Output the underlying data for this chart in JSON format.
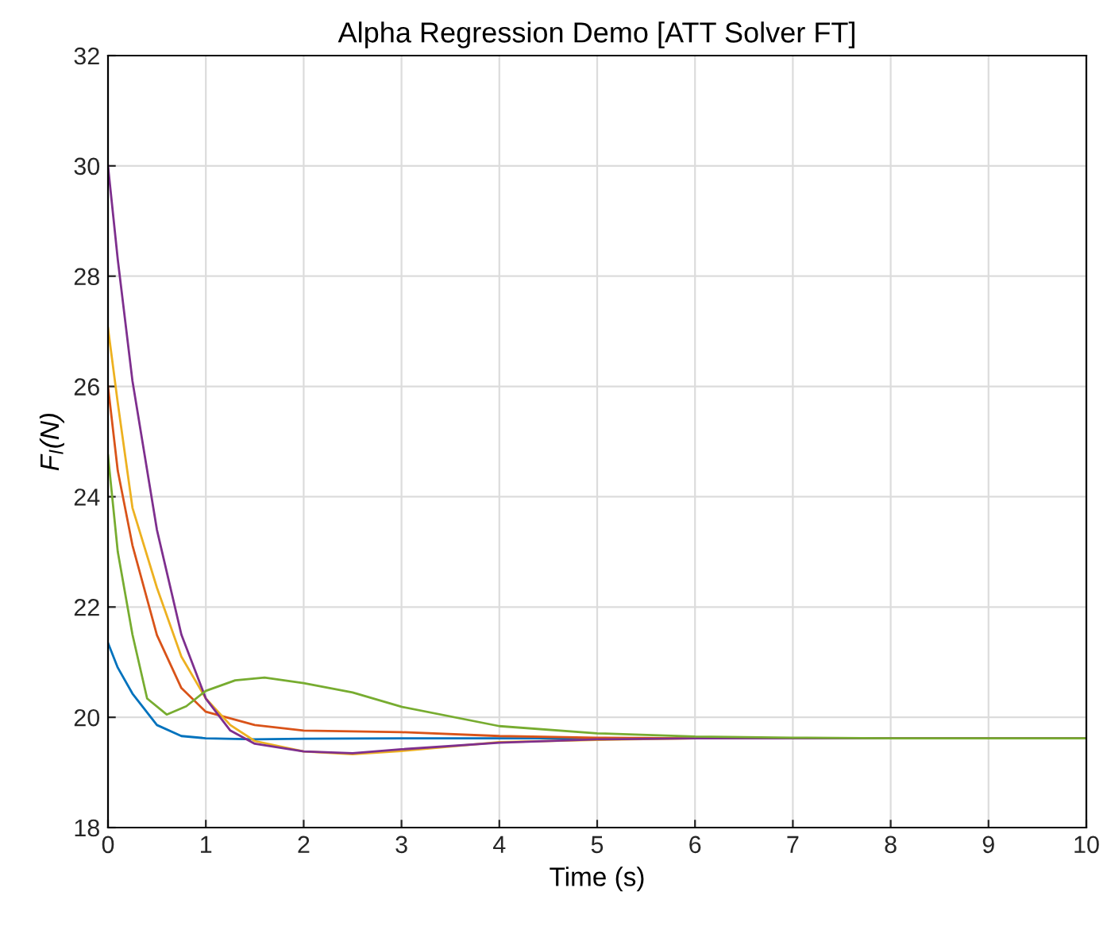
{
  "chart_data": {
    "type": "line",
    "title": "Alpha Regression Demo [ATT Solver FT]",
    "xlabel": "Time (s)",
    "ylabel": "F$_{l}$(N)",
    "xlim": [
      0,
      10
    ],
    "ylim": [
      18,
      32
    ],
    "xticks": [
      0,
      1,
      2,
      3,
      4,
      5,
      6,
      7,
      8,
      9,
      10
    ],
    "yticks": [
      18,
      20,
      22,
      24,
      26,
      28,
      30,
      32
    ],
    "grid": true,
    "marker": "none",
    "line_style": "solid",
    "series": [
      {
        "color": "#0072bd",
        "x": [
          0,
          0.1,
          0.25,
          0.5,
          0.75,
          1,
          1.5,
          2,
          3,
          4,
          6
        ],
        "values": [
          21.35,
          20.9,
          20.43,
          19.86,
          19.66,
          19.62,
          19.6,
          19.61,
          19.62,
          19.62,
          19.62
        ]
      },
      {
        "color": "#d95319",
        "x": [
          0,
          0.1,
          0.25,
          0.5,
          0.75,
          1,
          1.5,
          2,
          3,
          4,
          5,
          6,
          8,
          10
        ],
        "values": [
          26.0,
          24.47,
          23.12,
          21.49,
          20.53,
          20.1,
          19.86,
          19.76,
          19.73,
          19.66,
          19.63,
          19.62,
          19.62,
          19.62
        ]
      },
      {
        "color": "#edb120",
        "x": [
          0,
          0.1,
          0.25,
          0.5,
          0.75,
          1,
          1.25,
          1.5,
          2,
          2.5,
          3,
          4,
          5,
          6
        ],
        "values": [
          27.06,
          25.7,
          23.8,
          22.35,
          21.1,
          20.34,
          19.86,
          19.57,
          19.38,
          19.33,
          19.39,
          19.55,
          19.59,
          19.62
        ]
      },
      {
        "color": "#7e2f8e",
        "x": [
          0,
          0.1,
          0.25,
          0.5,
          0.75,
          1,
          1.25,
          1.5,
          2,
          2.5,
          3,
          4,
          5,
          6,
          8,
          10
        ],
        "values": [
          30.0,
          28.3,
          26.1,
          23.4,
          21.5,
          20.34,
          19.76,
          19.52,
          19.38,
          19.35,
          19.42,
          19.54,
          19.6,
          19.62,
          19.62,
          19.62
        ]
      },
      {
        "color": "#77ac30",
        "x": [
          0,
          0.1,
          0.25,
          0.4,
          0.6,
          0.8,
          1,
          1.3,
          1.6,
          2,
          2.5,
          3,
          4,
          5,
          6,
          7,
          8,
          10
        ],
        "values": [
          24.75,
          23.0,
          21.5,
          20.34,
          20.05,
          20.2,
          20.48,
          20.67,
          20.72,
          20.62,
          20.45,
          20.19,
          19.84,
          19.71,
          19.65,
          19.63,
          19.62,
          19.62
        ]
      }
    ]
  }
}
